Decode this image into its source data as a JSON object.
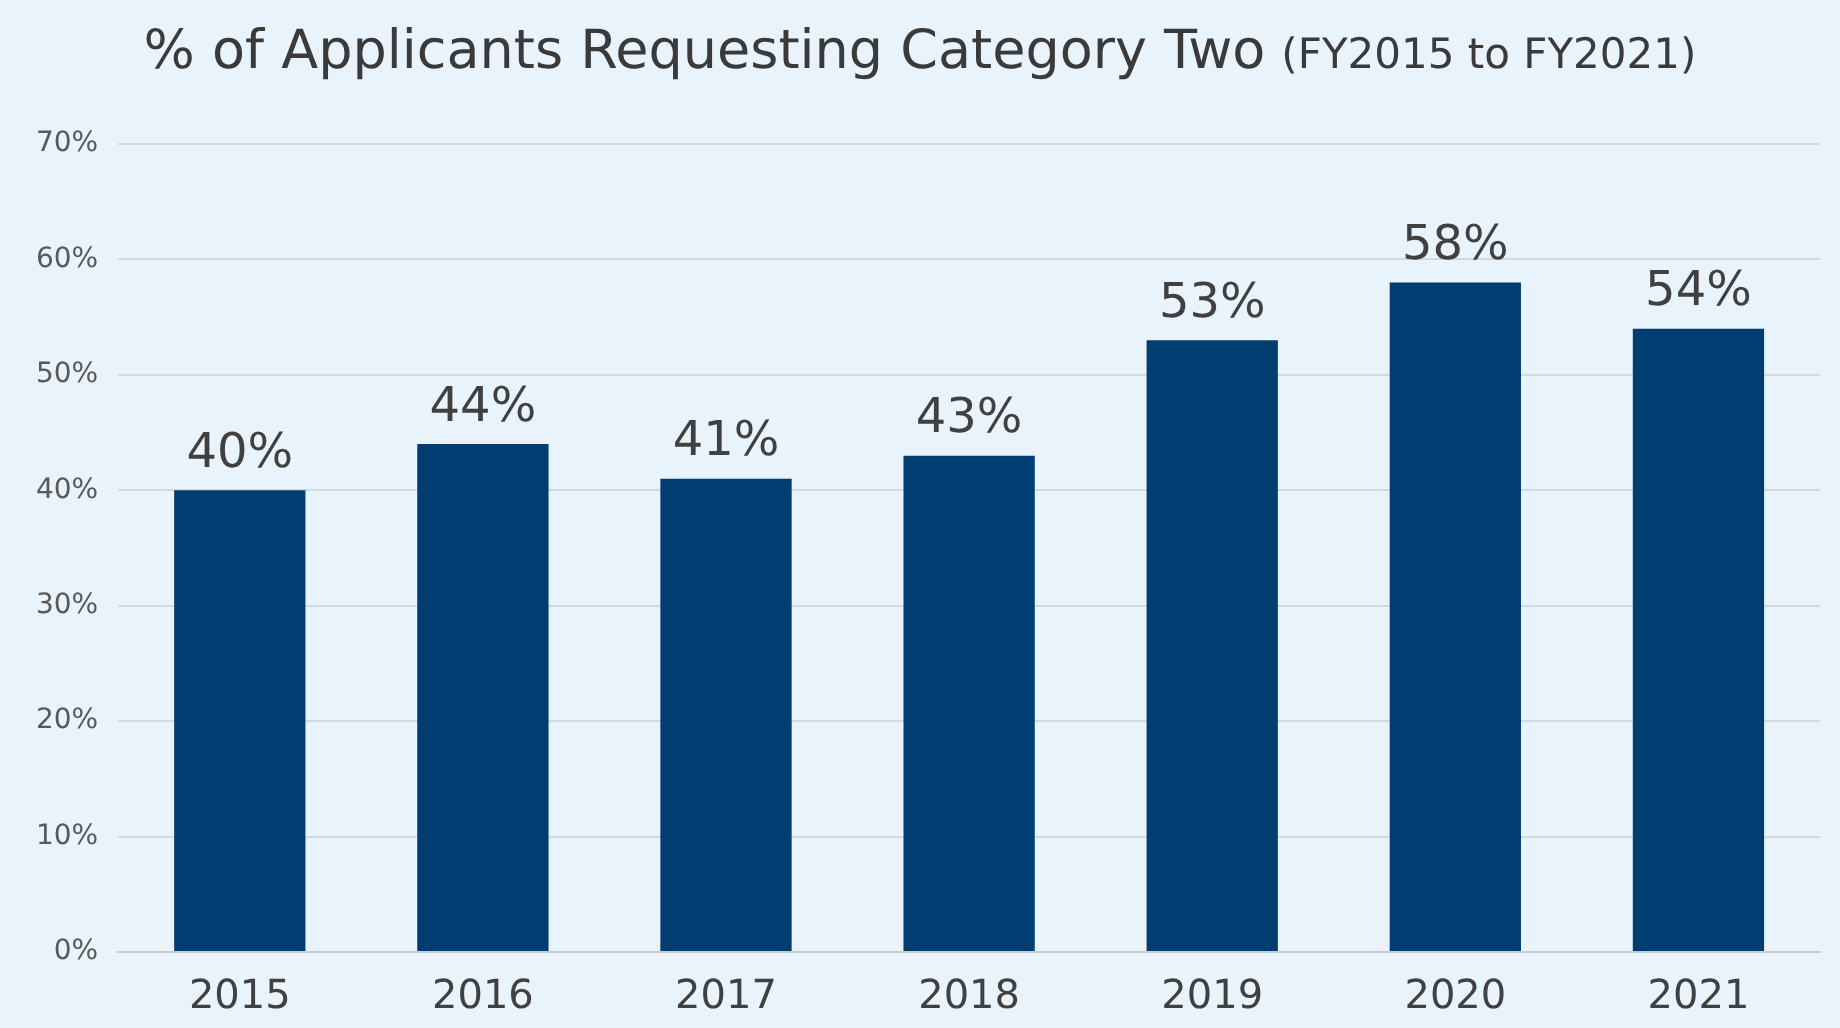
{
  "chart_data": {
    "type": "bar",
    "title": "% of Applicants Requesting Category Two",
    "subtitle": "(FY2015 to FY2021)",
    "categories": [
      "2015",
      "2016",
      "2017",
      "2018",
      "2019",
      "2020",
      "2021"
    ],
    "values": [
      40,
      44,
      41,
      43,
      53,
      58,
      54
    ],
    "value_labels": [
      "40%",
      "44%",
      "41%",
      "43%",
      "53%",
      "58%",
      "54%"
    ],
    "color": "#003e71",
    "ylim": [
      0,
      70
    ],
    "yticks": [
      {
        "value": 0,
        "label": "0%"
      },
      {
        "value": 10,
        "label": "10%"
      },
      {
        "value": 20,
        "label": "20%"
      },
      {
        "value": 30,
        "label": "30%"
      },
      {
        "value": 40,
        "label": "40%"
      },
      {
        "value": 50,
        "label": "50%"
      },
      {
        "value": 60,
        "label": "60%"
      },
      {
        "value": 70,
        "label": "70%"
      }
    ],
    "grid": "y",
    "legend": false
  }
}
